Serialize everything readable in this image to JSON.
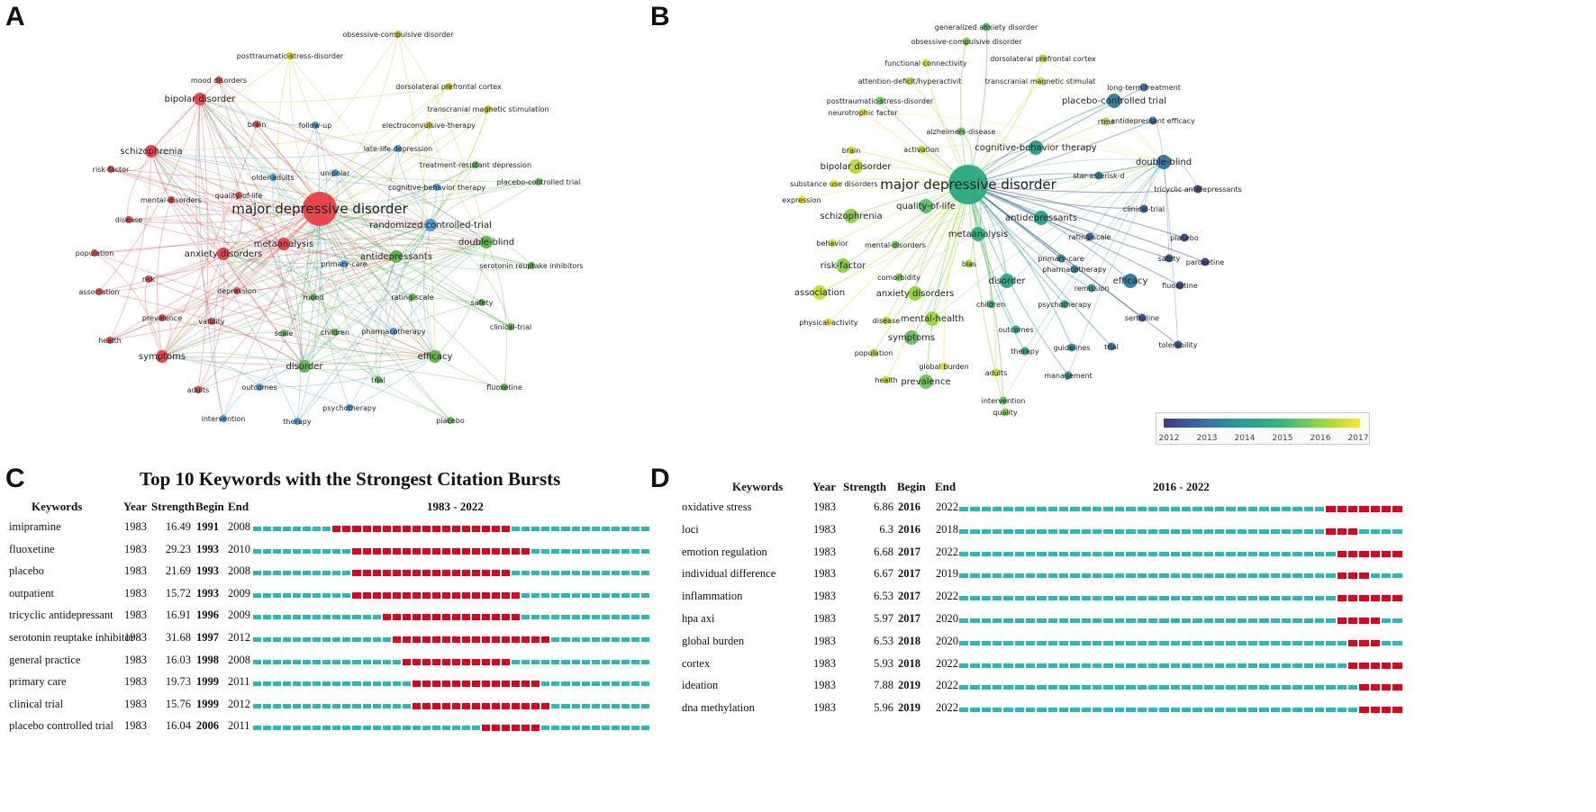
{
  "panels": {
    "A": {
      "letter": "A",
      "colors": {
        "red": "#e8474a",
        "green": "#59bb4a",
        "blue": "#4a9be0",
        "yellow": "#c9c41c"
      },
      "nodes": [
        {
          "label": "major depressive disorder",
          "cluster": "red",
          "size": 3
        },
        {
          "label": "bipolar disorder",
          "cluster": "red",
          "size": 2
        },
        {
          "label": "mood disorders",
          "cluster": "red",
          "size": 1
        },
        {
          "label": "brain",
          "cluster": "red",
          "size": 1
        },
        {
          "label": "schizophrenia",
          "cluster": "red",
          "size": 2
        },
        {
          "label": "risk-factor",
          "cluster": "red",
          "size": 1
        },
        {
          "label": "mental-disorders",
          "cluster": "red",
          "size": 1
        },
        {
          "label": "quality-of-life",
          "cluster": "red",
          "size": 1
        },
        {
          "label": "disease",
          "cluster": "red",
          "size": 1
        },
        {
          "label": "population",
          "cluster": "red",
          "size": 1
        },
        {
          "label": "anxiety disorders",
          "cluster": "red",
          "size": 2
        },
        {
          "label": "metaanalysis",
          "cluster": "red",
          "size": 2
        },
        {
          "label": "risk",
          "cluster": "red",
          "size": 1
        },
        {
          "label": "association",
          "cluster": "red",
          "size": 1
        },
        {
          "label": "depression",
          "cluster": "red",
          "size": 1
        },
        {
          "label": "prevalence",
          "cluster": "red",
          "size": 1
        },
        {
          "label": "validity",
          "cluster": "red",
          "size": 1
        },
        {
          "label": "health",
          "cluster": "red",
          "size": 1
        },
        {
          "label": "symptoms",
          "cluster": "red",
          "size": 2
        },
        {
          "label": "adults",
          "cluster": "red",
          "size": 1
        },
        {
          "label": "posttraumatic-stress-disorder",
          "cluster": "yellow",
          "size": 1
        },
        {
          "label": "obsessive-compulsive disorder",
          "cluster": "yellow",
          "size": 1
        },
        {
          "label": "dorsolateral prefrontal cortex",
          "cluster": "yellow",
          "size": 1
        },
        {
          "label": "transcranial magnetic stimulation",
          "cluster": "yellow",
          "size": 1
        },
        {
          "label": "electroconvulsive-therapy",
          "cluster": "yellow",
          "size": 1
        },
        {
          "label": "follow-up",
          "cluster": "blue",
          "size": 1
        },
        {
          "label": "late-life depression",
          "cluster": "blue",
          "size": 1
        },
        {
          "label": "unipolar",
          "cluster": "blue",
          "size": 1
        },
        {
          "label": "older-adults",
          "cluster": "blue",
          "size": 1
        },
        {
          "label": "cognitive-behavior therapy",
          "cluster": "blue",
          "size": 1
        },
        {
          "label": "randomized controlled-trial",
          "cluster": "blue",
          "size": 2
        },
        {
          "label": "primary-care",
          "cluster": "blue",
          "size": 1
        },
        {
          "label": "pharmacotherapy",
          "cluster": "blue",
          "size": 1
        },
        {
          "label": "outcomes",
          "cluster": "blue",
          "size": 1
        },
        {
          "label": "intervention",
          "cluster": "blue",
          "size": 1
        },
        {
          "label": "therapy",
          "cluster": "blue",
          "size": 1
        },
        {
          "label": "psychotherapy",
          "cluster": "blue",
          "size": 1
        },
        {
          "label": "treatment-resistant depression",
          "cluster": "green",
          "size": 1
        },
        {
          "label": "placebo-controlled trial",
          "cluster": "green",
          "size": 1
        },
        {
          "label": "double-blind",
          "cluster": "green",
          "size": 2
        },
        {
          "label": "antidepressants",
          "cluster": "green",
          "size": 2
        },
        {
          "label": "serotonin reuptake inhibitors",
          "cluster": "green",
          "size": 1
        },
        {
          "label": "rating-scale",
          "cluster": "green",
          "size": 1
        },
        {
          "label": "safety",
          "cluster": "green",
          "size": 1
        },
        {
          "label": "mood",
          "cluster": "green",
          "size": 1
        },
        {
          "label": "scale",
          "cluster": "green",
          "size": 1
        },
        {
          "label": "children",
          "cluster": "green",
          "size": 1
        },
        {
          "label": "clinical-trial",
          "cluster": "green",
          "size": 1
        },
        {
          "label": "disorder",
          "cluster": "green",
          "size": 2
        },
        {
          "label": "efficacy",
          "cluster": "green",
          "size": 2
        },
        {
          "label": "trial",
          "cluster": "green",
          "size": 1
        },
        {
          "label": "fluoxetine",
          "cluster": "green",
          "size": 1
        },
        {
          "label": "placebo",
          "cluster": "green",
          "size": 1
        }
      ]
    },
    "B": {
      "letter": "B",
      "colorbar": {
        "ticks": [
          "2012",
          "2013",
          "2014",
          "2015",
          "2016",
          "2017"
        ],
        "colors": [
          "#3b3a8c",
          "#3a6ea5",
          "#2a9d9a",
          "#35b779",
          "#90d743",
          "#fde725"
        ]
      },
      "nodes": [
        {
          "label": "major depressive disorder",
          "year": 2014.6,
          "size": 3
        },
        {
          "label": "generalized anxiety disorder",
          "year": 2015.2,
          "size": 1
        },
        {
          "label": "obsessive-compulsive disorder",
          "year": 2015.8,
          "size": 1
        },
        {
          "label": "dorsolateral prefrontal cortex",
          "year": 2016.3,
          "size": 1
        },
        {
          "label": "functional connectivity",
          "year": 2016.6,
          "size": 1
        },
        {
          "label": "attention-deficit/hyperactivit",
          "year": 2016.4,
          "size": 1
        },
        {
          "label": "transcranial magnetic stimulat",
          "year": 2016.7,
          "size": 1
        },
        {
          "label": "long-term treatment",
          "year": 2013.0,
          "size": 1
        },
        {
          "label": "posttraumatic-stress-disorder",
          "year": 2015.5,
          "size": 1
        },
        {
          "label": "neurotrophic factor",
          "year": 2016.9,
          "size": 1
        },
        {
          "label": "placebo-controlled trial",
          "year": 2013.4,
          "size": 2
        },
        {
          "label": "rtms",
          "year": 2016.2,
          "size": 1
        },
        {
          "label": "antidepressant efficacy",
          "year": 2013.1,
          "size": 1
        },
        {
          "label": "alzheimers-disease",
          "year": 2015.6,
          "size": 1
        },
        {
          "label": "brain",
          "year": 2016.6,
          "size": 1
        },
        {
          "label": "activation",
          "year": 2016.5,
          "size": 1
        },
        {
          "label": "cognitive-behavior therapy",
          "year": 2014.2,
          "size": 2
        },
        {
          "label": "bipolar disorder",
          "year": 2016.4,
          "size": 2
        },
        {
          "label": "double-blind",
          "year": 2013.2,
          "size": 2
        },
        {
          "label": "star-asterisk-d",
          "year": 2013.7,
          "size": 1
        },
        {
          "label": "substance use disorders",
          "year": 2016.8,
          "size": 1
        },
        {
          "label": "tricyclic antidepressants",
          "year": 2012.4,
          "size": 1
        },
        {
          "label": "expression",
          "year": 2016.9,
          "size": 1
        },
        {
          "label": "quality-of-life",
          "year": 2015.4,
          "size": 2
        },
        {
          "label": "clinical-trial",
          "year": 2012.8,
          "size": 1
        },
        {
          "label": "schizophrenia",
          "year": 2015.9,
          "size": 2
        },
        {
          "label": "antidepressants",
          "year": 2014.3,
          "size": 2
        },
        {
          "label": "rating-scale",
          "year": 2012.9,
          "size": 1
        },
        {
          "label": "placebo",
          "year": 2012.5,
          "size": 1
        },
        {
          "label": "behavior",
          "year": 2016.7,
          "size": 1
        },
        {
          "label": "mental-disorders",
          "year": 2015.7,
          "size": 1
        },
        {
          "label": "metaanalysis",
          "year": 2014.8,
          "size": 2
        },
        {
          "label": "primary-care",
          "year": 2013.6,
          "size": 1
        },
        {
          "label": "safety",
          "year": 2012.6,
          "size": 1
        },
        {
          "label": "paroxetine",
          "year": 2012.3,
          "size": 1
        },
        {
          "label": "risk-factor",
          "year": 2015.9,
          "size": 2
        },
        {
          "label": "comorbidity",
          "year": 2015.8,
          "size": 1
        },
        {
          "label": "bias",
          "year": 2016.2,
          "size": 1
        },
        {
          "label": "pharmacotherapy",
          "year": 2013.5,
          "size": 1
        },
        {
          "label": "association",
          "year": 2016.5,
          "size": 2
        },
        {
          "label": "anxiety disorders",
          "year": 2016.0,
          "size": 2
        },
        {
          "label": "disorder",
          "year": 2014.5,
          "size": 2
        },
        {
          "label": "remission",
          "year": 2014.0,
          "size": 1
        },
        {
          "label": "efficacy",
          "year": 2013.4,
          "size": 2
        },
        {
          "label": "fluoxetine",
          "year": 2012.5,
          "size": 1
        },
        {
          "label": "children",
          "year": 2015.1,
          "size": 1
        },
        {
          "label": "psychotherapy",
          "year": 2014.4,
          "size": 1
        },
        {
          "label": "physical-activity",
          "year": 2016.8,
          "size": 1
        },
        {
          "label": "disease",
          "year": 2016.3,
          "size": 1
        },
        {
          "label": "mental-health",
          "year": 2016.1,
          "size": 2
        },
        {
          "label": "sertraline",
          "year": 2012.6,
          "size": 1
        },
        {
          "label": "symptoms",
          "year": 2015.5,
          "size": 2
        },
        {
          "label": "outcomes",
          "year": 2014.4,
          "size": 1
        },
        {
          "label": "population",
          "year": 2016.3,
          "size": 1
        },
        {
          "label": "therapy",
          "year": 2014.2,
          "size": 1
        },
        {
          "label": "guidelines",
          "year": 2014.0,
          "size": 1
        },
        {
          "label": "trial",
          "year": 2013.3,
          "size": 1
        },
        {
          "label": "tolerability",
          "year": 2012.7,
          "size": 1
        },
        {
          "label": "global burden",
          "year": 2016.8,
          "size": 1
        },
        {
          "label": "adults",
          "year": 2016.5,
          "size": 1
        },
        {
          "label": "management",
          "year": 2014.1,
          "size": 1
        },
        {
          "label": "health",
          "year": 2016.6,
          "size": 1
        },
        {
          "label": "prevalence",
          "year": 2015.6,
          "size": 2
        },
        {
          "label": "intervention",
          "year": 2015.4,
          "size": 1
        },
        {
          "label": "quality",
          "year": 2016.0,
          "size": 1
        }
      ]
    },
    "C": {
      "letter": "C",
      "title": "Top 10 Keywords with the Strongest Citation Bursts",
      "headers": {
        "keywords": "Keywords",
        "year": "Year",
        "strength": "Strength",
        "begin": "Begin",
        "end": "End",
        "range": "1983 - 2022"
      },
      "range_start": 1983,
      "range_end": 2022,
      "rows": [
        {
          "keyword": "imipramine",
          "year": "1983",
          "strength": "16.49",
          "begin": "1991",
          "end": "2008"
        },
        {
          "keyword": "fluoxetine",
          "year": "1983",
          "strength": "29.23",
          "begin": "1993",
          "end": "2010"
        },
        {
          "keyword": "placebo",
          "year": "1983",
          "strength": "21.69",
          "begin": "1993",
          "end": "2008"
        },
        {
          "keyword": "outpatient",
          "year": "1983",
          "strength": "15.72",
          "begin": "1993",
          "end": "2009"
        },
        {
          "keyword": "tricyclic antidepressant",
          "year": "1983",
          "strength": "16.91",
          "begin": "1996",
          "end": "2009"
        },
        {
          "keyword": "serotonin reuptake inhibitor",
          "year": "1983",
          "strength": "31.68",
          "begin": "1997",
          "end": "2012"
        },
        {
          "keyword": "general practice",
          "year": "1983",
          "strength": "16.03",
          "begin": "1998",
          "end": "2008"
        },
        {
          "keyword": "primary care",
          "year": "1983",
          "strength": "19.73",
          "begin": "1999",
          "end": "2011"
        },
        {
          "keyword": "clinical trial",
          "year": "1983",
          "strength": "15.76",
          "begin": "1999",
          "end": "2012"
        },
        {
          "keyword": "placebo controlled trial",
          "year": "1983",
          "strength": "16.04",
          "begin": "2006",
          "end": "2011"
        }
      ]
    },
    "D": {
      "letter": "D",
      "headers": {
        "keywords": "Keywords",
        "year": "Year",
        "strength": "Strength",
        "begin": "Begin",
        "end": "End",
        "range": "2016 - 2022"
      },
      "range_start": 1983,
      "range_end": 2022,
      "rows": [
        {
          "keyword": "oxidative stress",
          "year": "1983",
          "strength": "6.86",
          "begin": "2016",
          "end": "2022"
        },
        {
          "keyword": "loci",
          "year": "1983",
          "strength": "6.3",
          "begin": "2016",
          "end": "2018"
        },
        {
          "keyword": "emotion regulation",
          "year": "1983",
          "strength": "6.68",
          "begin": "2017",
          "end": "2022"
        },
        {
          "keyword": "individual difference",
          "year": "1983",
          "strength": "6.67",
          "begin": "2017",
          "end": "2019"
        },
        {
          "keyword": "inflammation",
          "year": "1983",
          "strength": "6.53",
          "begin": "2017",
          "end": "2022"
        },
        {
          "keyword": "hpa axi",
          "year": "1983",
          "strength": "5.97",
          "begin": "2017",
          "end": "2020"
        },
        {
          "keyword": "global burden",
          "year": "1983",
          "strength": "6.53",
          "begin": "2018",
          "end": "2020"
        },
        {
          "keyword": "cortex",
          "year": "1983",
          "strength": "5.93",
          "begin": "2018",
          "end": "2022"
        },
        {
          "keyword": "ideation",
          "year": "1983",
          "strength": "7.88",
          "begin": "2019",
          "end": "2022"
        },
        {
          "keyword": "dna methylation",
          "year": "1983",
          "strength": "5.96",
          "begin": "2019",
          "end": "2022"
        }
      ]
    }
  },
  "chart_data": [
    {
      "type": "table",
      "title": "Top 10 Keywords with the Strongest Citation Bursts",
      "columns": [
        "Keywords",
        "Year",
        "Strength",
        "Begin",
        "End"
      ],
      "range": [
        1983,
        2022
      ],
      "rows": [
        [
          "imipramine",
          1983,
          16.49,
          1991,
          2008
        ],
        [
          "fluoxetine",
          1983,
          29.23,
          1993,
          2010
        ],
        [
          "placebo",
          1983,
          21.69,
          1993,
          2008
        ],
        [
          "outpatient",
          1983,
          15.72,
          1993,
          2009
        ],
        [
          "tricyclic antidepressant",
          1983,
          16.91,
          1996,
          2009
        ],
        [
          "serotonin reuptake inhibitor",
          1983,
          31.68,
          1997,
          2012
        ],
        [
          "general practice",
          1983,
          16.03,
          1998,
          2008
        ],
        [
          "primary care",
          1983,
          19.73,
          1999,
          2011
        ],
        [
          "clinical trial",
          1983,
          15.76,
          1999,
          2012
        ],
        [
          "placebo controlled trial",
          1983,
          16.04,
          2006,
          2011
        ]
      ]
    },
    {
      "type": "table",
      "title": "",
      "columns": [
        "Keywords",
        "Year",
        "Strength",
        "Begin",
        "End"
      ],
      "range": [
        2016,
        2022
      ],
      "rows": [
        [
          "oxidative stress",
          1983,
          6.86,
          2016,
          2022
        ],
        [
          "loci",
          1983,
          6.3,
          2016,
          2018
        ],
        [
          "emotion regulation",
          1983,
          6.68,
          2017,
          2022
        ],
        [
          "individual difference",
          1983,
          6.67,
          2017,
          2019
        ],
        [
          "inflammation",
          1983,
          6.53,
          2017,
          2022
        ],
        [
          "hpa axi",
          1983,
          5.97,
          2017,
          2020
        ],
        [
          "global burden",
          1983,
          6.53,
          2018,
          2020
        ],
        [
          "cortex",
          1983,
          5.93,
          2018,
          2022
        ],
        [
          "ideation",
          1983,
          7.88,
          2019,
          2022
        ],
        [
          "dna methylation",
          1983,
          5.96,
          2019,
          2022
        ]
      ]
    }
  ]
}
